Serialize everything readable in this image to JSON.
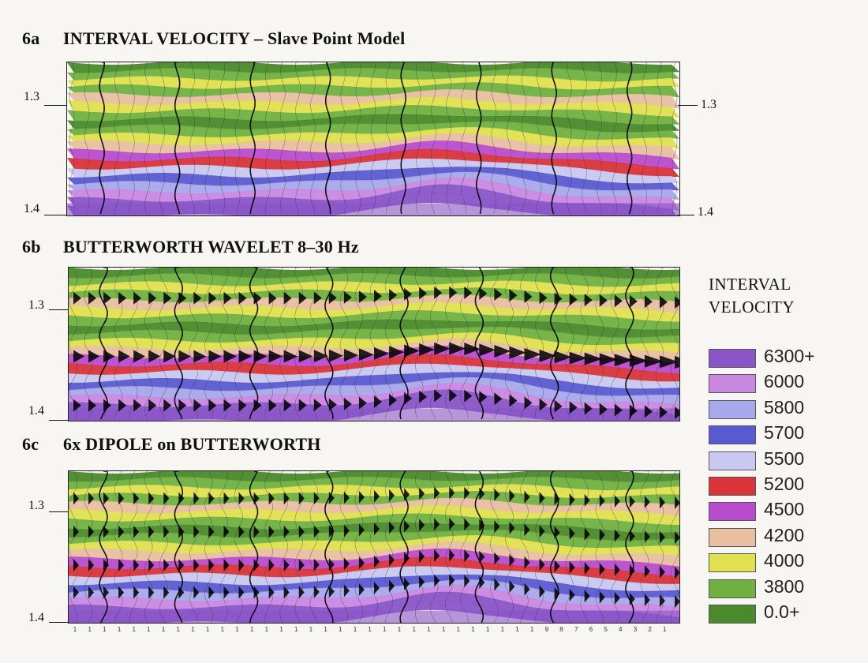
{
  "panels": [
    {
      "code": "6a",
      "title": "INTERVAL VELOCITY – Slave Point Model",
      "left_labels": [
        "1.3",
        "1.4"
      ],
      "right_labels": [
        "1.3",
        "1.4"
      ]
    },
    {
      "code": "6b",
      "title": "BUTTERWORTH WAVELET 8–30 Hz",
      "left_labels": [
        "1.3",
        "1.4"
      ],
      "right_labels": []
    },
    {
      "code": "6c",
      "title": "6x DIPOLE on BUTTERWORTH",
      "left_labels": [
        "1.3",
        "1.4"
      ],
      "right_labels": []
    }
  ],
  "legend": {
    "title_line1": "INTERVAL",
    "title_line2": "VELOCITY",
    "items": [
      {
        "label": "6300+",
        "color": "#8a55c8"
      },
      {
        "label": "6000",
        "color": "#c888e0"
      },
      {
        "label": "5800",
        "color": "#a8a8ec"
      },
      {
        "label": "5700",
        "color": "#5a5ad0"
      },
      {
        "label": "5500",
        "color": "#c8c8f0"
      },
      {
        "label": "5200",
        "color": "#d8343a"
      },
      {
        "label": "4500",
        "color": "#b84ccc"
      },
      {
        "label": "4200",
        "color": "#e8bfa0"
      },
      {
        "label": "4000",
        "color": "#e0e050"
      },
      {
        "label": "3800",
        "color": "#70b040"
      },
      {
        "label": "0.0+",
        "color": "#4a8a2a"
      }
    ]
  },
  "shot_labels": [
    "1",
    "1",
    "1",
    "1",
    "1",
    "1",
    "1",
    "1",
    "1",
    "1",
    "1",
    "1",
    "1",
    "1",
    "1",
    "1",
    "1",
    "1",
    "1",
    "1",
    "1",
    "1",
    "1",
    "1",
    "1",
    "1",
    "1",
    "1",
    "1",
    "1",
    "1",
    "1",
    "9",
    "8",
    "7",
    "6",
    "5",
    "4",
    "3",
    "2",
    "1"
  ]
}
